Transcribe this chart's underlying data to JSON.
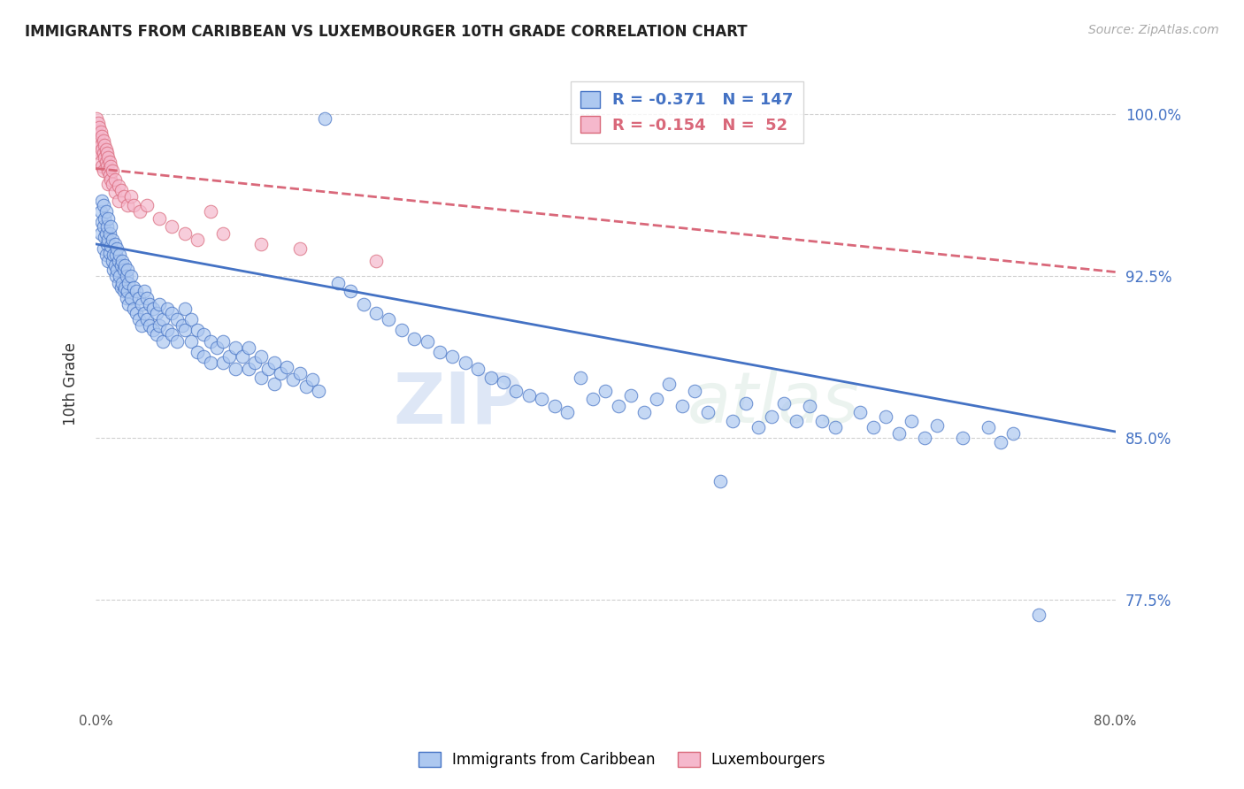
{
  "title": "IMMIGRANTS FROM CARIBBEAN VS LUXEMBOURGER 10TH GRADE CORRELATION CHART",
  "source": "Source: ZipAtlas.com",
  "ylabel": "10th Grade",
  "ytick_labels": [
    "100.0%",
    "92.5%",
    "85.0%",
    "77.5%"
  ],
  "ytick_values": [
    1.0,
    0.925,
    0.85,
    0.775
  ],
  "xmin": 0.0,
  "xmax": 0.8,
  "ymin": 0.725,
  "ymax": 1.025,
  "legend_r1": "R = -0.371",
  "legend_n1": "N = 147",
  "legend_r2": "R = -0.154",
  "legend_n2": "N =  52",
  "color_blue": "#adc8f0",
  "color_pink": "#f5b8cc",
  "line_blue": "#4472c4",
  "line_pink": "#d9687a",
  "watermark_zip": "ZIP",
  "watermark_atlas": "atlas",
  "blue_line_x0": 0.0,
  "blue_line_x1": 0.8,
  "blue_line_y0": 0.94,
  "blue_line_y1": 0.853,
  "pink_line_x0": 0.0,
  "pink_line_x1": 0.8,
  "pink_line_y0": 0.975,
  "pink_line_y1": 0.927,
  "blue_scatter": [
    [
      0.004,
      0.955
    ],
    [
      0.004,
      0.945
    ],
    [
      0.005,
      0.96
    ],
    [
      0.005,
      0.95
    ],
    [
      0.006,
      0.958
    ],
    [
      0.006,
      0.948
    ],
    [
      0.006,
      0.938
    ],
    [
      0.007,
      0.952
    ],
    [
      0.007,
      0.943
    ],
    [
      0.008,
      0.955
    ],
    [
      0.008,
      0.945
    ],
    [
      0.008,
      0.935
    ],
    [
      0.009,
      0.948
    ],
    [
      0.009,
      0.94
    ],
    [
      0.01,
      0.952
    ],
    [
      0.01,
      0.942
    ],
    [
      0.01,
      0.932
    ],
    [
      0.011,
      0.945
    ],
    [
      0.011,
      0.936
    ],
    [
      0.012,
      0.948
    ],
    [
      0.012,
      0.939
    ],
    [
      0.013,
      0.942
    ],
    [
      0.013,
      0.932
    ],
    [
      0.014,
      0.935
    ],
    [
      0.014,
      0.928
    ],
    [
      0.015,
      0.94
    ],
    [
      0.015,
      0.93
    ],
    [
      0.016,
      0.935
    ],
    [
      0.016,
      0.925
    ],
    [
      0.017,
      0.938
    ],
    [
      0.017,
      0.928
    ],
    [
      0.018,
      0.932
    ],
    [
      0.018,
      0.922
    ],
    [
      0.019,
      0.935
    ],
    [
      0.019,
      0.925
    ],
    [
      0.02,
      0.93
    ],
    [
      0.02,
      0.92
    ],
    [
      0.021,
      0.932
    ],
    [
      0.021,
      0.922
    ],
    [
      0.022,
      0.928
    ],
    [
      0.022,
      0.918
    ],
    [
      0.023,
      0.93
    ],
    [
      0.023,
      0.92
    ],
    [
      0.024,
      0.925
    ],
    [
      0.024,
      0.915
    ],
    [
      0.025,
      0.928
    ],
    [
      0.025,
      0.918
    ],
    [
      0.026,
      0.922
    ],
    [
      0.026,
      0.912
    ],
    [
      0.028,
      0.925
    ],
    [
      0.028,
      0.915
    ],
    [
      0.03,
      0.92
    ],
    [
      0.03,
      0.91
    ],
    [
      0.032,
      0.918
    ],
    [
      0.032,
      0.908
    ],
    [
      0.034,
      0.915
    ],
    [
      0.034,
      0.905
    ],
    [
      0.036,
      0.912
    ],
    [
      0.036,
      0.902
    ],
    [
      0.038,
      0.918
    ],
    [
      0.038,
      0.908
    ],
    [
      0.04,
      0.915
    ],
    [
      0.04,
      0.905
    ],
    [
      0.042,
      0.912
    ],
    [
      0.042,
      0.902
    ],
    [
      0.045,
      0.91
    ],
    [
      0.045,
      0.9
    ],
    [
      0.048,
      0.908
    ],
    [
      0.048,
      0.898
    ],
    [
      0.05,
      0.912
    ],
    [
      0.05,
      0.902
    ],
    [
      0.053,
      0.905
    ],
    [
      0.053,
      0.895
    ],
    [
      0.056,
      0.91
    ],
    [
      0.056,
      0.9
    ],
    [
      0.06,
      0.908
    ],
    [
      0.06,
      0.898
    ],
    [
      0.064,
      0.905
    ],
    [
      0.064,
      0.895
    ],
    [
      0.068,
      0.902
    ],
    [
      0.07,
      0.91
    ],
    [
      0.07,
      0.9
    ],
    [
      0.075,
      0.905
    ],
    [
      0.075,
      0.895
    ],
    [
      0.08,
      0.9
    ],
    [
      0.08,
      0.89
    ],
    [
      0.085,
      0.898
    ],
    [
      0.085,
      0.888
    ],
    [
      0.09,
      0.895
    ],
    [
      0.09,
      0.885
    ],
    [
      0.095,
      0.892
    ],
    [
      0.1,
      0.895
    ],
    [
      0.1,
      0.885
    ],
    [
      0.105,
      0.888
    ],
    [
      0.11,
      0.892
    ],
    [
      0.11,
      0.882
    ],
    [
      0.115,
      0.888
    ],
    [
      0.12,
      0.892
    ],
    [
      0.12,
      0.882
    ],
    [
      0.125,
      0.885
    ],
    [
      0.13,
      0.888
    ],
    [
      0.13,
      0.878
    ],
    [
      0.135,
      0.882
    ],
    [
      0.14,
      0.885
    ],
    [
      0.14,
      0.875
    ],
    [
      0.145,
      0.88
    ],
    [
      0.15,
      0.883
    ],
    [
      0.155,
      0.877
    ],
    [
      0.16,
      0.88
    ],
    [
      0.165,
      0.874
    ],
    [
      0.17,
      0.877
    ],
    [
      0.175,
      0.872
    ],
    [
      0.18,
      0.998
    ],
    [
      0.19,
      0.922
    ],
    [
      0.2,
      0.918
    ],
    [
      0.21,
      0.912
    ],
    [
      0.22,
      0.908
    ],
    [
      0.23,
      0.905
    ],
    [
      0.24,
      0.9
    ],
    [
      0.25,
      0.896
    ],
    [
      0.26,
      0.895
    ],
    [
      0.27,
      0.89
    ],
    [
      0.28,
      0.888
    ],
    [
      0.29,
      0.885
    ],
    [
      0.3,
      0.882
    ],
    [
      0.31,
      0.878
    ],
    [
      0.32,
      0.876
    ],
    [
      0.33,
      0.872
    ],
    [
      0.34,
      0.87
    ],
    [
      0.35,
      0.868
    ],
    [
      0.36,
      0.865
    ],
    [
      0.37,
      0.862
    ],
    [
      0.38,
      0.878
    ],
    [
      0.39,
      0.868
    ],
    [
      0.4,
      0.872
    ],
    [
      0.41,
      0.865
    ],
    [
      0.42,
      0.87
    ],
    [
      0.43,
      0.862
    ],
    [
      0.44,
      0.868
    ],
    [
      0.45,
      0.875
    ],
    [
      0.46,
      0.865
    ],
    [
      0.47,
      0.872
    ],
    [
      0.48,
      0.862
    ],
    [
      0.49,
      0.83
    ],
    [
      0.5,
      0.858
    ],
    [
      0.51,
      0.866
    ],
    [
      0.52,
      0.855
    ],
    [
      0.53,
      0.86
    ],
    [
      0.54,
      0.866
    ],
    [
      0.55,
      0.858
    ],
    [
      0.56,
      0.865
    ],
    [
      0.57,
      0.858
    ],
    [
      0.58,
      0.855
    ],
    [
      0.6,
      0.862
    ],
    [
      0.61,
      0.855
    ],
    [
      0.62,
      0.86
    ],
    [
      0.63,
      0.852
    ],
    [
      0.64,
      0.858
    ],
    [
      0.65,
      0.85
    ],
    [
      0.66,
      0.856
    ],
    [
      0.68,
      0.85
    ],
    [
      0.7,
      0.855
    ],
    [
      0.71,
      0.848
    ],
    [
      0.72,
      0.852
    ],
    [
      0.74,
      0.768
    ]
  ],
  "pink_scatter": [
    [
      0.001,
      0.998
    ],
    [
      0.001,
      0.992
    ],
    [
      0.002,
      0.996
    ],
    [
      0.002,
      0.99
    ],
    [
      0.002,
      0.984
    ],
    [
      0.003,
      0.994
    ],
    [
      0.003,
      0.988
    ],
    [
      0.003,
      0.982
    ],
    [
      0.004,
      0.992
    ],
    [
      0.004,
      0.986
    ],
    [
      0.004,
      0.978
    ],
    [
      0.005,
      0.99
    ],
    [
      0.005,
      0.984
    ],
    [
      0.005,
      0.976
    ],
    [
      0.006,
      0.988
    ],
    [
      0.006,
      0.982
    ],
    [
      0.006,
      0.974
    ],
    [
      0.007,
      0.986
    ],
    [
      0.007,
      0.98
    ],
    [
      0.008,
      0.984
    ],
    [
      0.008,
      0.978
    ],
    [
      0.009,
      0.982
    ],
    [
      0.009,
      0.976
    ],
    [
      0.01,
      0.98
    ],
    [
      0.01,
      0.974
    ],
    [
      0.01,
      0.968
    ],
    [
      0.011,
      0.978
    ],
    [
      0.011,
      0.972
    ],
    [
      0.012,
      0.976
    ],
    [
      0.012,
      0.97
    ],
    [
      0.013,
      0.974
    ],
    [
      0.013,
      0.968
    ],
    [
      0.015,
      0.97
    ],
    [
      0.015,
      0.964
    ],
    [
      0.018,
      0.967
    ],
    [
      0.018,
      0.96
    ],
    [
      0.02,
      0.965
    ],
    [
      0.022,
      0.962
    ],
    [
      0.025,
      0.958
    ],
    [
      0.028,
      0.962
    ],
    [
      0.03,
      0.958
    ],
    [
      0.035,
      0.955
    ],
    [
      0.04,
      0.958
    ],
    [
      0.05,
      0.952
    ],
    [
      0.06,
      0.948
    ],
    [
      0.07,
      0.945
    ],
    [
      0.08,
      0.942
    ],
    [
      0.09,
      0.955
    ],
    [
      0.1,
      0.945
    ],
    [
      0.13,
      0.94
    ],
    [
      0.16,
      0.938
    ],
    [
      0.22,
      0.932
    ]
  ]
}
